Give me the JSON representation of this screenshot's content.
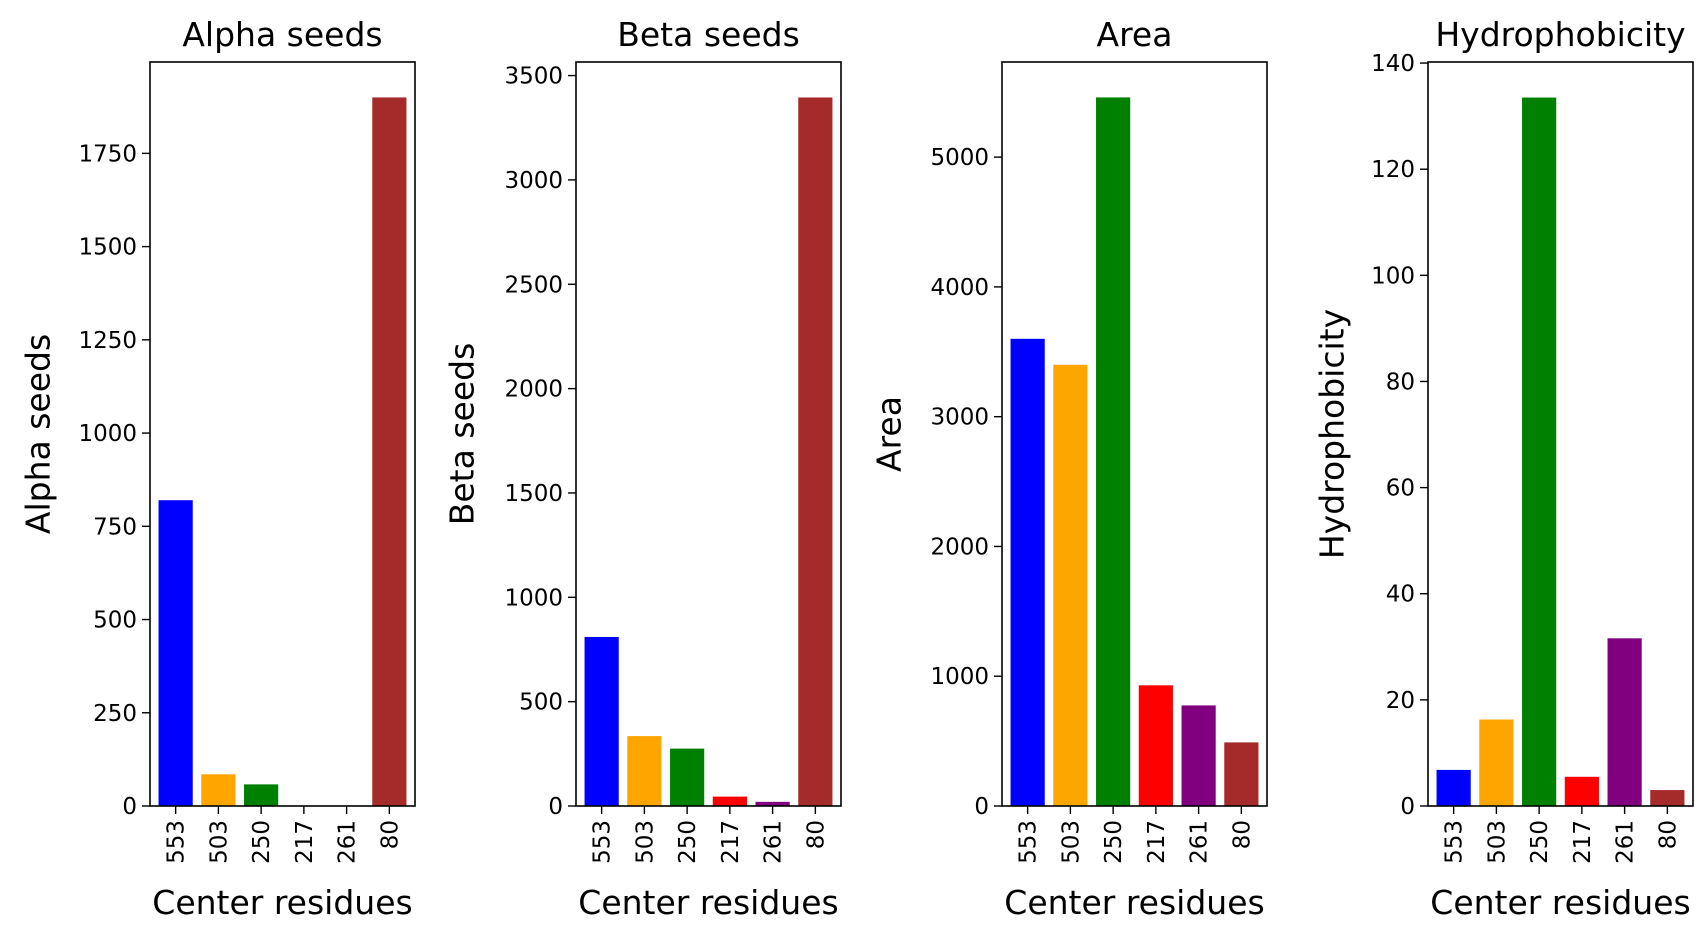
{
  "chart_data": [
    {
      "type": "bar",
      "title": "Alpha seeds",
      "xlabel": "Center residues",
      "ylabel": "Alpha seeds",
      "categories": [
        "553",
        "503",
        "250",
        "217",
        "261",
        "80"
      ],
      "values": [
        820,
        85,
        58,
        0,
        0,
        1900
      ],
      "colors": [
        "#0000ff",
        "#ffa500",
        "#008000",
        "#ff0000",
        "#800080",
        "#a52a2a"
      ],
      "ylim": [
        0,
        1995
      ],
      "yticks": [
        0,
        250,
        500,
        750,
        1000,
        1250,
        1500,
        1750
      ]
    },
    {
      "type": "bar",
      "title": "Beta seeds",
      "xlabel": "Center residues",
      "ylabel": "Beta seeds",
      "categories": [
        "553",
        "503",
        "250",
        "217",
        "261",
        "80"
      ],
      "values": [
        810,
        335,
        275,
        45,
        20,
        3395
      ],
      "colors": [
        "#0000ff",
        "#ffa500",
        "#008000",
        "#ff0000",
        "#800080",
        "#a52a2a"
      ],
      "ylim": [
        0,
        3565
      ],
      "yticks": [
        0,
        500,
        1000,
        1500,
        2000,
        2500,
        3000,
        3500
      ]
    },
    {
      "type": "bar",
      "title": "Area",
      "xlabel": "Center residues",
      "ylabel": "Area",
      "categories": [
        "553",
        "503",
        "250",
        "217",
        "261",
        "80"
      ],
      "values": [
        3600,
        3400,
        5460,
        930,
        775,
        490
      ],
      "colors": [
        "#0000ff",
        "#ffa500",
        "#008000",
        "#ff0000",
        "#800080",
        "#a52a2a"
      ],
      "ylim": [
        0,
        5733
      ],
      "yticks": [
        0,
        1000,
        2000,
        3000,
        4000,
        5000
      ]
    },
    {
      "type": "bar",
      "title": "Hydrophobicity",
      "xlabel": "Center residues",
      "ylabel": "Hydrophobicity",
      "categories": [
        "553",
        "503",
        "250",
        "217",
        "261",
        "80"
      ],
      "values": [
        6.8,
        16.3,
        133.5,
        5.5,
        31.6,
        3.0
      ],
      "colors": [
        "#0000ff",
        "#ffa500",
        "#008000",
        "#ff0000",
        "#800080",
        "#a52a2a"
      ],
      "ylim": [
        0,
        140.2
      ],
      "yticks": [
        0,
        20,
        40,
        60,
        80,
        100,
        120,
        140
      ]
    }
  ]
}
